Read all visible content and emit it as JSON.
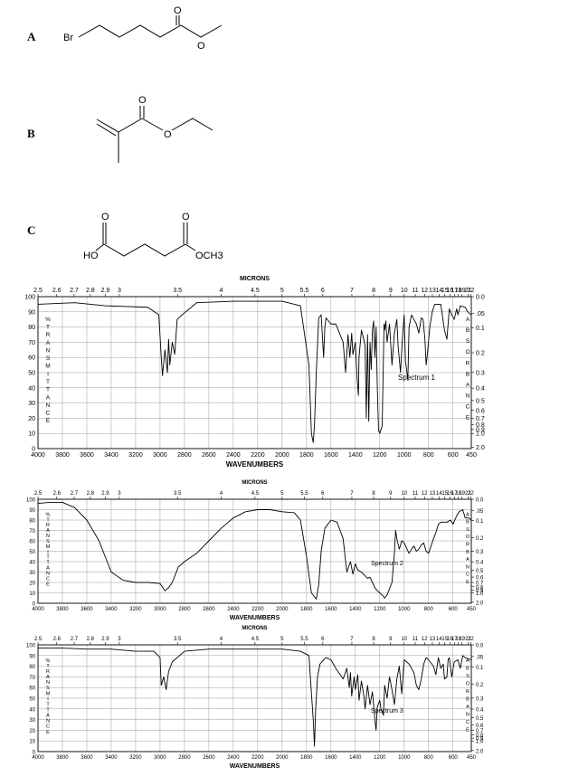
{
  "compounds": [
    {
      "label": "A",
      "atoms": [
        "Br",
        "O",
        "O"
      ]
    },
    {
      "label": "B",
      "atoms": [
        "O",
        "O"
      ]
    },
    {
      "label": "C",
      "atoms": [
        "HO",
        "O",
        "O",
        "OCH3"
      ]
    }
  ],
  "chart_data": [
    {
      "type": "line",
      "title": "Spectrum 1",
      "top_axis_title": "MICRONS",
      "xlabel": "WAVENUMBERS",
      "left_axis_letters": "%TRANSMITTANCE",
      "right_axis_letters": "ABSORBANCE",
      "xlim": [
        4000,
        450
      ],
      "ylim": [
        0,
        100
      ],
      "x_tick_labels": [
        "4000",
        "3800",
        "3600",
        "3400",
        "3200",
        "3000",
        "2800",
        "2600",
        "2400",
        "2200",
        "2000",
        "1800",
        "1600",
        "1400",
        "1200",
        "1000",
        "800",
        "600",
        "450"
      ],
      "y_tick_labels": [
        "0",
        "10",
        "20",
        "30",
        "40",
        "50",
        "60",
        "70",
        "80",
        "90",
        "100"
      ],
      "micron_tick_labels": [
        "2.5",
        "2.6",
        "2.7",
        "2.8",
        "2.9",
        "3",
        "3.5",
        "4",
        "4.5",
        "5",
        "5.5",
        "6",
        "7",
        "8",
        "9",
        "10",
        "11",
        "12",
        "13",
        "14",
        "15",
        "16",
        "17",
        "18",
        "19",
        "21",
        "22"
      ],
      "absorbance_tick_labels": [
        "0.0",
        ".05",
        "0.1",
        "0.2",
        "0.3",
        "0.4",
        "0.5",
        "0.6",
        "0.7",
        "0.8",
        "0.9",
        "1.0",
        "2.0"
      ],
      "series": [
        {
          "x": [
            4000,
            3700,
            3450,
            3100,
            3010,
            2990,
            2980,
            2960,
            2940,
            2930,
            2920,
            2900,
            2880,
            2860,
            2820,
            2700,
            2400,
            2000,
            1850,
            1780,
            1760,
            1745,
            1735,
            1720,
            1700,
            1680,
            1660,
            1650,
            1640,
            1600,
            1560,
            1500,
            1480,
            1460,
            1445,
            1430,
            1420,
            1400,
            1385,
            1375,
            1370,
            1350,
            1320,
            1310,
            1300,
            1290,
            1280,
            1270,
            1260,
            1250,
            1240,
            1230,
            1220,
            1210,
            1200,
            1180,
            1165,
            1160,
            1150,
            1140,
            1120,
            1100,
            1080,
            1060,
            1050,
            1030,
            1015,
            1000,
            990,
            970,
            960,
            940,
            920,
            900,
            880,
            860,
            845,
            830,
            820,
            810,
            790,
            770,
            750,
            700,
            670,
            650,
            630,
            610,
            590,
            570,
            560,
            540,
            500,
            480,
            450
          ],
          "y": [
            95,
            96,
            94,
            93,
            88,
            60,
            48,
            65,
            50,
            72,
            55,
            70,
            62,
            85,
            88,
            96,
            97,
            97,
            94,
            55,
            10,
            4,
            15,
            50,
            86,
            88,
            60,
            80,
            86,
            82,
            82,
            70,
            50,
            75,
            60,
            76,
            62,
            70,
            45,
            35,
            60,
            78,
            68,
            20,
            75,
            18,
            70,
            52,
            78,
            84,
            60,
            80,
            40,
            12,
            10,
            15,
            82,
            78,
            84,
            70,
            82,
            55,
            76,
            85,
            68,
            50,
            72,
            88,
            58,
            45,
            80,
            88,
            85,
            82,
            76,
            86,
            85,
            72,
            55,
            62,
            80,
            90,
            95,
            95,
            78,
            72,
            92,
            88,
            85,
            92,
            88,
            94,
            93,
            90,
            88
          ]
        }
      ]
    },
    {
      "type": "line",
      "title": "Spectrum 2",
      "top_axis_title": "MICRONS",
      "xlabel": "WAVENUMBERS",
      "left_axis_letters": "%TRANSMITTANCE",
      "right_axis_letters": "ABSORBANCE",
      "xlim": [
        4000,
        450
      ],
      "ylim": [
        0,
        100
      ],
      "x_tick_labels": [
        "4000",
        "3800",
        "3600",
        "3400",
        "3200",
        "3000",
        "2800",
        "2600",
        "2400",
        "2200",
        "2000",
        "1800",
        "1600",
        "1400",
        "1200",
        "1000",
        "800",
        "600",
        "450"
      ],
      "y_tick_labels": [
        "0",
        "10",
        "20",
        "30",
        "40",
        "50",
        "60",
        "70",
        "80",
        "90",
        "100"
      ],
      "micron_tick_labels": [
        "2.5",
        "2.6",
        "2.7",
        "2.8",
        "2.9",
        "3",
        "3.5",
        "4",
        "4.5",
        "5",
        "5.5",
        "6",
        "7",
        "8",
        "9",
        "10",
        "11",
        "12",
        "13",
        "14",
        "15",
        "16",
        "17",
        "18",
        "19",
        "21",
        "22"
      ],
      "absorbance_tick_labels": [
        "0.0",
        ".05",
        "0.1",
        "0.2",
        "0.3",
        "0.4",
        "0.5",
        "0.6",
        "0.7",
        "0.8",
        "0.9",
        "1.0",
        "2.0"
      ],
      "series": [
        {
          "x": [
            4000,
            3900,
            3800,
            3700,
            3600,
            3500,
            3400,
            3300,
            3200,
            3100,
            3000,
            2960,
            2930,
            2900,
            2850,
            2800,
            2700,
            2600,
            2500,
            2400,
            2300,
            2200,
            2100,
            2000,
            1900,
            1850,
            1800,
            1760,
            1720,
            1700,
            1680,
            1650,
            1600,
            1550,
            1500,
            1470,
            1440,
            1420,
            1400,
            1380,
            1350,
            1300,
            1280,
            1260,
            1240,
            1220,
            1200,
            1180,
            1160,
            1140,
            1100,
            1080,
            1070,
            1060,
            1040,
            1020,
            1000,
            960,
            940,
            920,
            900,
            880,
            860,
            840,
            820,
            800,
            780,
            760,
            740,
            720,
            700,
            650,
            620,
            600,
            570,
            550,
            520,
            500,
            470,
            450
          ],
          "y": [
            96,
            97,
            97,
            92,
            80,
            60,
            30,
            22,
            20,
            20,
            19,
            12,
            15,
            20,
            35,
            40,
            48,
            60,
            72,
            82,
            88,
            90,
            90,
            88,
            87,
            80,
            45,
            10,
            4,
            18,
            50,
            72,
            80,
            78,
            62,
            30,
            40,
            28,
            38,
            32,
            30,
            24,
            25,
            20,
            15,
            12,
            10,
            8,
            5,
            8,
            20,
            48,
            70,
            62,
            52,
            60,
            58,
            48,
            52,
            55,
            50,
            52,
            56,
            58,
            50,
            48,
            55,
            62,
            68,
            76,
            78,
            78,
            80,
            76,
            84,
            88,
            90,
            82,
            82,
            80
          ]
        }
      ]
    },
    {
      "type": "line",
      "title": "Spectrum 3",
      "top_axis_title": "MICRONS",
      "xlabel": "WAVENUMBERS",
      "left_axis_letters": "%TRANSMITTANCE",
      "right_axis_letters": "ABSORBANCE",
      "xlim": [
        4000,
        450
      ],
      "ylim": [
        0,
        100
      ],
      "x_tick_labels": [
        "4000",
        "3800",
        "3600",
        "3400",
        "3200",
        "3000",
        "2800",
        "2600",
        "2400",
        "2200",
        "2000",
        "1800",
        "1600",
        "1400",
        "1200",
        "1000",
        "800",
        "600",
        "450"
      ],
      "y_tick_labels": [
        "0",
        "10",
        "20",
        "30",
        "40",
        "50",
        "60",
        "70",
        "80",
        "90",
        "100"
      ],
      "micron_tick_labels": [
        "2.5",
        "2.6",
        "2.7",
        "2.8",
        "2.9",
        "3",
        "3.5",
        "4",
        "4.5",
        "5",
        "5.5",
        "6",
        "7",
        "8",
        "9",
        "10",
        "11",
        "12",
        "13",
        "14",
        "15",
        "16",
        "17",
        "18",
        "19",
        "21",
        "22"
      ],
      "absorbance_tick_labels": [
        "0.0",
        ".05",
        "0.1",
        "0.2",
        "0.3",
        "0.4",
        "0.5",
        "0.6",
        "0.7",
        "0.8",
        "0.9",
        "1.0",
        "2.0"
      ],
      "series": [
        {
          "x": [
            4000,
            3800,
            3600,
            3400,
            3200,
            3050,
            3000,
            2990,
            2970,
            2950,
            2930,
            2900,
            2800,
            2600,
            2400,
            2200,
            2000,
            1850,
            1780,
            1760,
            1745,
            1735,
            1725,
            1710,
            1690,
            1660,
            1640,
            1600,
            1560,
            1500,
            1470,
            1450,
            1440,
            1430,
            1410,
            1400,
            1380,
            1370,
            1350,
            1330,
            1320,
            1300,
            1280,
            1260,
            1240,
            1230,
            1220,
            1200,
            1190,
            1170,
            1160,
            1140,
            1120,
            1100,
            1080,
            1060,
            1040,
            1020,
            1000,
            960,
            920,
            900,
            880,
            860,
            840,
            820,
            800,
            760,
            740,
            720,
            700,
            680,
            670,
            650,
            640,
            630,
            610,
            590,
            560,
            540,
            520,
            500,
            480,
            450
          ],
          "y": [
            97,
            97,
            96,
            96,
            94,
            94,
            88,
            62,
            70,
            58,
            75,
            84,
            94,
            96,
            96,
            96,
            96,
            94,
            90,
            55,
            30,
            5,
            40,
            70,
            82,
            86,
            88,
            86,
            78,
            68,
            78,
            60,
            74,
            52,
            70,
            58,
            72,
            48,
            66,
            52,
            40,
            62,
            44,
            56,
            30,
            20,
            42,
            48,
            40,
            34,
            62,
            50,
            70,
            58,
            44,
            68,
            80,
            54,
            86,
            82,
            74,
            62,
            58,
            68,
            82,
            88,
            86,
            80,
            72,
            88,
            78,
            82,
            68,
            70,
            86,
            88,
            70,
            84,
            86,
            78,
            90,
            88,
            87,
            86
          ]
        }
      ]
    }
  ]
}
